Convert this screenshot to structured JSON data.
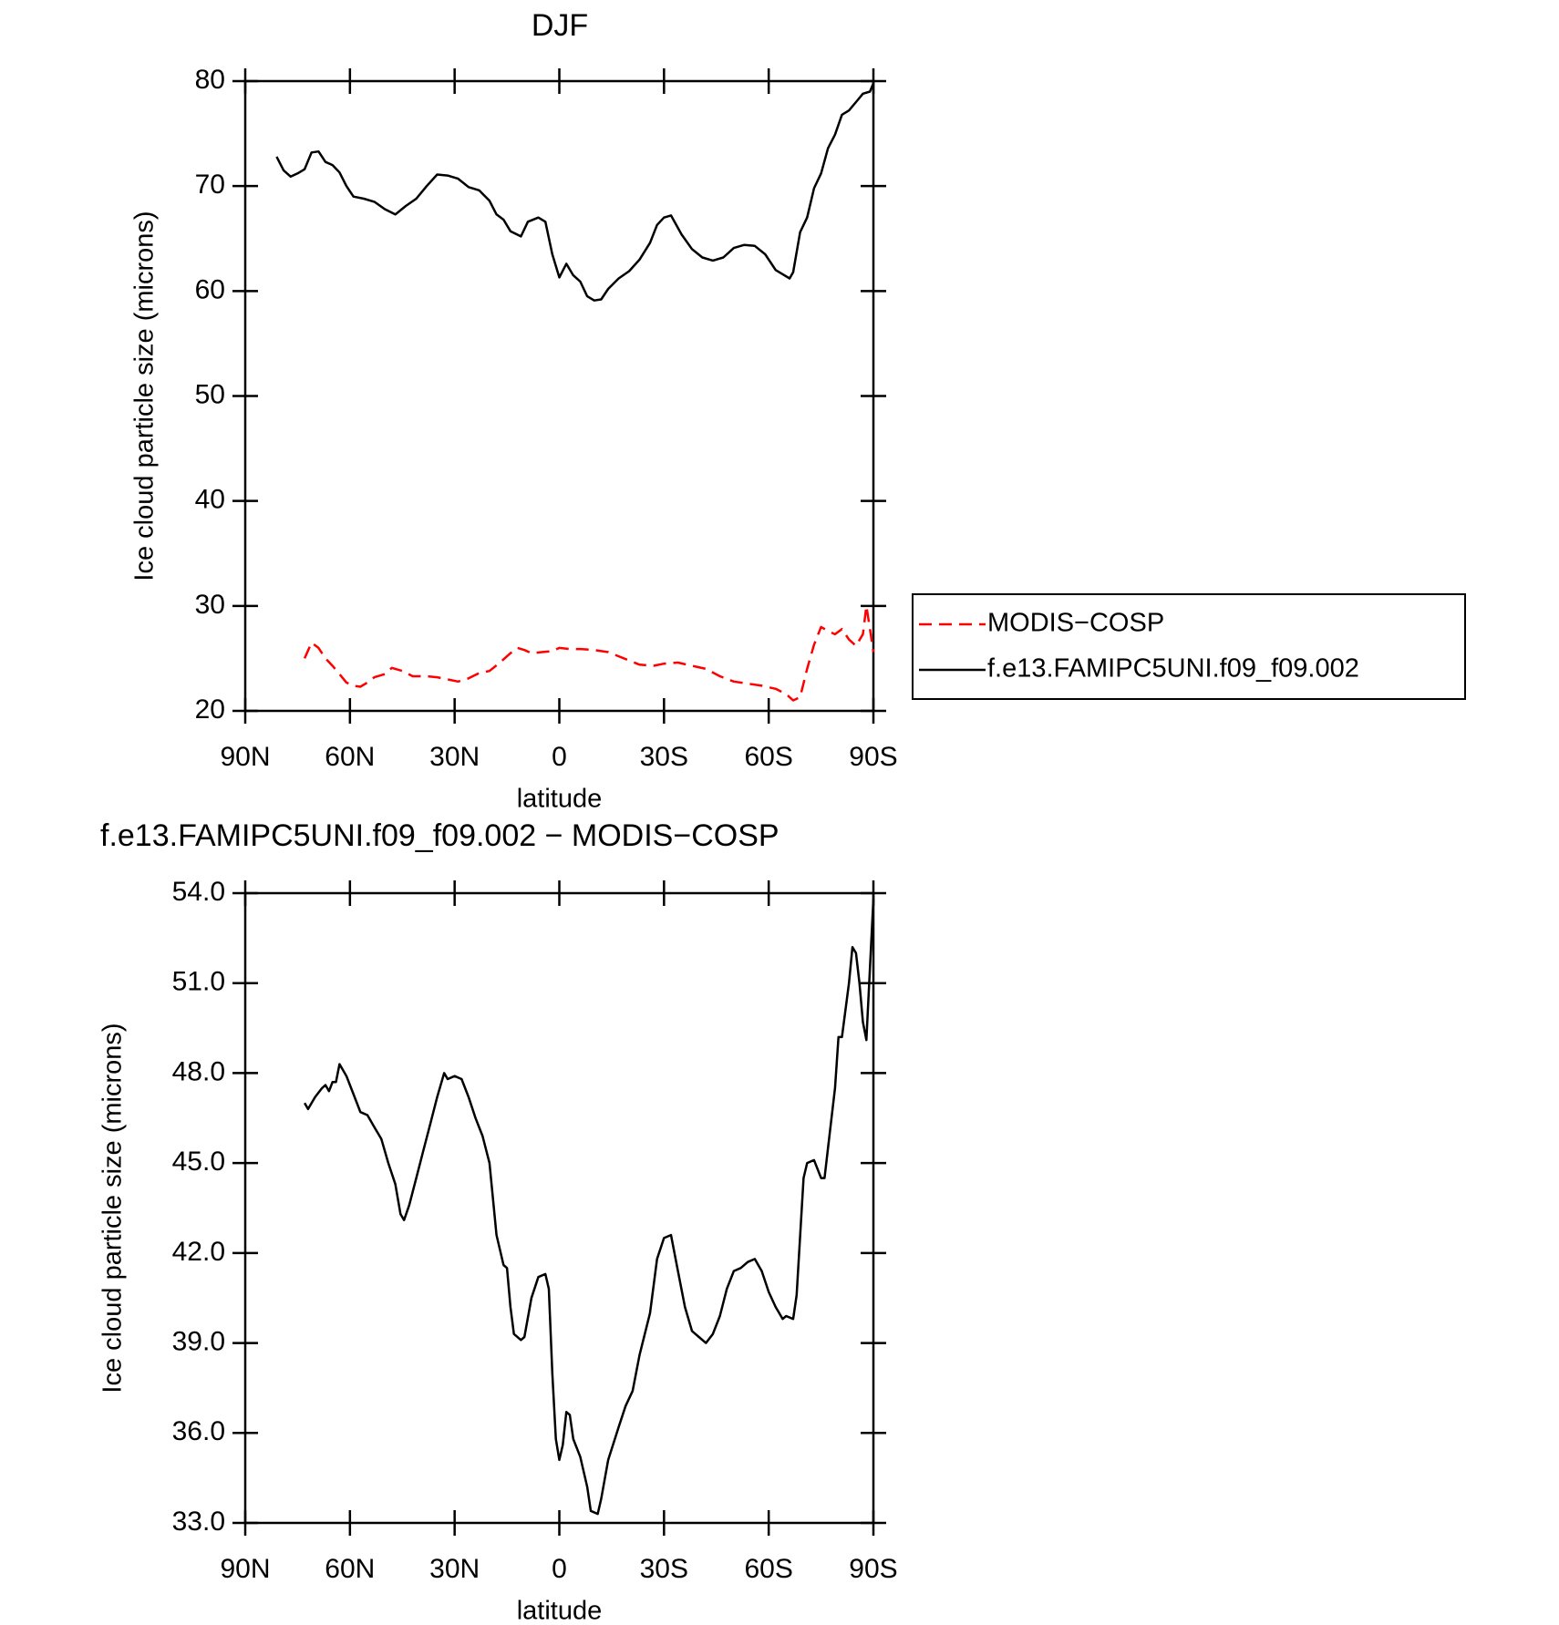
{
  "chart_data": [
    {
      "type": "line",
      "title": "DJF",
      "xlabel": "latitude",
      "ylabel": "Ice cloud particle size (microns)",
      "xlim": [
        90,
        -90
      ],
      "ylim": [
        20,
        80
      ],
      "xticks": [
        {
          "value": 90,
          "label": "90N"
        },
        {
          "value": 60,
          "label": "60N"
        },
        {
          "value": 30,
          "label": "30N"
        },
        0,
        {
          "value": -30,
          "label": "30S"
        },
        {
          "value": -60,
          "label": "60S"
        },
        {
          "value": -90,
          "label": "90S"
        }
      ],
      "yticks": [
        20,
        30,
        40,
        50,
        60,
        70,
        80
      ],
      "legend": "right",
      "series": [
        {
          "name": "MODIS−COSP",
          "color": "#ff0000",
          "dashed": true,
          "x": [
            73,
            71,
            69,
            67,
            65,
            63,
            61,
            59,
            57,
            55,
            53,
            50,
            48,
            45,
            42,
            38,
            35,
            32,
            29,
            26,
            23,
            20,
            17,
            14,
            12,
            10,
            8,
            5,
            2,
            0,
            -3,
            -6,
            -10,
            -14,
            -17,
            -20,
            -23,
            -27,
            -30,
            -34,
            -38,
            -42,
            -46,
            -50,
            -54,
            -58,
            -62,
            -65,
            -67,
            -69,
            -71,
            -73,
            -75,
            -77,
            -79,
            -81,
            -83,
            -85,
            -87,
            -88,
            -89,
            -90
          ],
          "values": [
            25.0,
            26.5,
            26.0,
            25.0,
            24.3,
            23.5,
            22.7,
            22.4,
            22.3,
            22.7,
            23.2,
            23.5,
            24.1,
            23.8,
            23.3,
            23.3,
            23.2,
            23.0,
            22.8,
            23.1,
            23.6,
            23.8,
            24.6,
            25.5,
            26.0,
            25.8,
            25.5,
            25.6,
            25.7,
            26.0,
            25.9,
            25.9,
            25.8,
            25.6,
            25.2,
            24.8,
            24.4,
            24.3,
            24.5,
            24.6,
            24.3,
            24.0,
            23.3,
            22.8,
            22.6,
            22.4,
            22.1,
            21.6,
            21.0,
            21.3,
            24.0,
            26.3,
            28.0,
            27.6,
            27.3,
            27.8,
            26.8,
            26.2,
            27.3,
            30.0,
            27.8,
            25.6
          ]
        },
        {
          "name": "f.e13.FAMIPC5UNI.f09_f09.002",
          "color": "#000000",
          "dashed": false,
          "x": [
            81,
            79,
            77,
            75,
            73,
            71,
            69,
            67,
            65,
            63,
            61,
            59,
            56,
            53,
            50,
            47,
            44,
            41,
            38,
            35,
            32,
            29,
            26,
            23,
            20,
            18,
            16,
            14,
            11,
            9,
            6,
            4,
            2,
            0,
            -2,
            -4,
            -6,
            -8,
            -10,
            -12,
            -14,
            -17,
            -20,
            -23,
            -26,
            -28,
            -30,
            -32,
            -35,
            -38,
            -41,
            -44,
            -47,
            -50,
            -53,
            -56,
            -59,
            -62,
            -64,
            -66,
            -67,
            -69,
            -71,
            -73,
            -75,
            -77,
            -79,
            -81,
            -83,
            -85,
            -87,
            -89,
            -90
          ],
          "values": [
            72.8,
            71.5,
            70.9,
            71.2,
            71.6,
            73.2,
            73.3,
            72.3,
            72.0,
            71.3,
            70.0,
            69.0,
            68.8,
            68.5,
            67.8,
            67.3,
            68.1,
            68.8,
            70.0,
            71.1,
            71.0,
            70.7,
            69.9,
            69.6,
            68.6,
            67.3,
            66.8,
            65.7,
            65.2,
            66.6,
            67.0,
            66.6,
            63.5,
            61.3,
            62.6,
            61.5,
            60.9,
            59.5,
            59.1,
            59.2,
            60.2,
            61.2,
            61.9,
            63.0,
            64.6,
            66.3,
            67.0,
            67.2,
            65.4,
            64.0,
            63.2,
            62.9,
            63.2,
            64.1,
            64.4,
            64.3,
            63.5,
            62.0,
            61.6,
            61.2,
            61.8,
            65.6,
            67.0,
            69.8,
            71.2,
            73.6,
            74.9,
            76.8,
            77.2,
            78.0,
            78.8,
            79.0,
            79.8
          ]
        }
      ]
    },
    {
      "type": "line",
      "title": "f.e13.FAMIPC5UNI.f09_f09.002 − MODIS−COSP",
      "xlabel": "latitude",
      "ylabel": "Ice cloud particle size (microns)",
      "xlim": [
        90,
        -90
      ],
      "ylim": [
        33,
        54
      ],
      "xticks": [
        {
          "value": 90,
          "label": "90N"
        },
        {
          "value": 60,
          "label": "60N"
        },
        {
          "value": 30,
          "label": "30N"
        },
        0,
        {
          "value": -30,
          "label": "30S"
        },
        {
          "value": -60,
          "label": "60S"
        },
        {
          "value": -90,
          "label": "90S"
        }
      ],
      "yticks": [
        {
          "value": 33,
          "label": "33.0"
        },
        {
          "value": 36,
          "label": "36.0"
        },
        {
          "value": 39,
          "label": "39.0"
        },
        {
          "value": 42,
          "label": "42.0"
        },
        {
          "value": 45,
          "label": "45.0"
        },
        {
          "value": 48,
          "label": "48.0"
        },
        {
          "value": 51,
          "label": "51.0"
        },
        {
          "value": 54,
          "label": "54.0"
        }
      ],
      "series": [
        {
          "color": "#000000",
          "dashed": false,
          "x": [
            73,
            72,
            70,
            68,
            67,
            66,
            65,
            64,
            63,
            62,
            61,
            59,
            57,
            55,
            53,
            51,
            49,
            47,
            45.5,
            44.5,
            43,
            41,
            39,
            37,
            35,
            33,
            32,
            30,
            28,
            26,
            24,
            22,
            20,
            18,
            16,
            15,
            14,
            13,
            11,
            10,
            8,
            6,
            4,
            3,
            2,
            1,
            0,
            -1,
            -2,
            -3,
            -4,
            -6,
            -8,
            -9,
            -11,
            -12,
            -14,
            -17,
            -19,
            -21,
            -23,
            -26,
            -28,
            -30,
            -32,
            -34,
            -36,
            -38,
            -40,
            -42,
            -44,
            -46,
            -48,
            -50,
            -52,
            -54,
            -56,
            -58,
            -60,
            -62,
            -64,
            -65,
            -67,
            -68,
            -70,
            -71,
            -73,
            -75,
            -76,
            -77,
            -79,
            -80,
            -81,
            -83,
            -84,
            -85,
            -86,
            -87,
            -88,
            -89,
            -90
          ],
          "values": [
            47.0,
            46.8,
            47.2,
            47.5,
            47.6,
            47.4,
            47.7,
            47.7,
            48.3,
            48.1,
            47.9,
            47.3,
            46.7,
            46.6,
            46.2,
            45.8,
            45.0,
            44.3,
            43.3,
            43.1,
            43.6,
            44.5,
            45.4,
            46.3,
            47.2,
            48.0,
            47.8,
            47.9,
            47.8,
            47.2,
            46.5,
            45.9,
            45.0,
            42.6,
            41.6,
            41.5,
            40.2,
            39.3,
            39.1,
            39.2,
            40.5,
            41.2,
            41.3,
            40.8,
            38.0,
            35.8,
            35.1,
            35.6,
            36.7,
            36.6,
            35.8,
            35.2,
            34.2,
            33.4,
            33.3,
            33.8,
            35.1,
            36.2,
            36.9,
            37.4,
            38.6,
            40.0,
            41.8,
            42.5,
            42.6,
            41.4,
            40.2,
            39.4,
            39.2,
            39.0,
            39.3,
            39.9,
            40.8,
            41.4,
            41.5,
            41.7,
            41.8,
            41.4,
            40.7,
            40.2,
            39.8,
            39.9,
            39.8,
            40.6,
            44.5,
            45.0,
            45.1,
            44.5,
            44.5,
            45.5,
            47.5,
            49.2,
            49.2,
            51.0,
            52.2,
            52.0,
            51.0,
            49.7,
            49.1,
            51.5,
            53.8
          ]
        }
      ]
    }
  ]
}
